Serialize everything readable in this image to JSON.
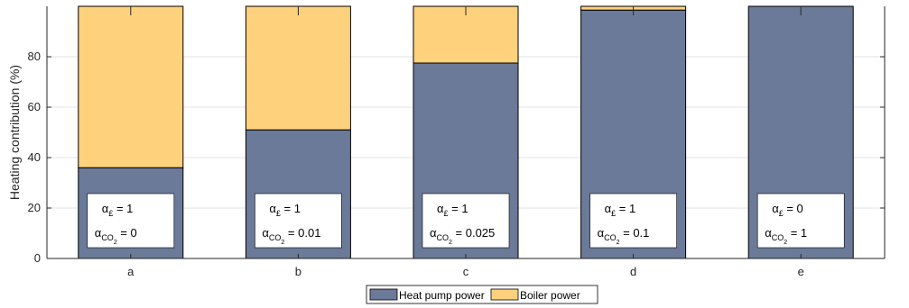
{
  "chart_data": {
    "type": "bar",
    "stacked": true,
    "ylabel": "Heating contribution (%)",
    "xlabel": "",
    "ylim": [
      0,
      100
    ],
    "yticks": [
      0,
      20,
      40,
      60,
      80
    ],
    "grid": "horizontal",
    "categories": [
      "a",
      "b",
      "c",
      "d",
      "e"
    ],
    "series": [
      {
        "name": "Heat pump power",
        "color": "#6a7a98",
        "values": [
          36,
          51,
          77.5,
          98.5,
          100
        ]
      },
      {
        "name": "Boiler power",
        "color": "#fed17c",
        "values": [
          64,
          49,
          22.5,
          1.5,
          0
        ]
      }
    ],
    "legend_position": "bottom-center",
    "annotations": [
      {
        "cost_symbol": "α",
        "cost_sub": "£",
        "cost_value": "= 1",
        "co2_symbol": "α",
        "co2_sub": "CO",
        "co2_subsub": "2",
        "co2_value": "=  0"
      },
      {
        "cost_symbol": "α",
        "cost_sub": "£",
        "cost_value": "= 1",
        "co2_symbol": "α",
        "co2_sub": "CO",
        "co2_subsub": "2",
        "co2_value": "=  0.01"
      },
      {
        "cost_symbol": "α",
        "cost_sub": "£",
        "cost_value": "= 1",
        "co2_symbol": "α",
        "co2_sub": "CO",
        "co2_subsub": "2",
        "co2_value": "=  0.025"
      },
      {
        "cost_symbol": "α",
        "cost_sub": "£",
        "cost_value": "= 1",
        "co2_symbol": "α",
        "co2_sub": "CO",
        "co2_subsub": "2",
        "co2_value": "=  0.1"
      },
      {
        "cost_symbol": "α",
        "cost_sub": "£",
        "cost_value": "= 0",
        "co2_symbol": "α",
        "co2_sub": "CO",
        "co2_subsub": "2",
        "co2_value": "=  1"
      }
    ]
  }
}
